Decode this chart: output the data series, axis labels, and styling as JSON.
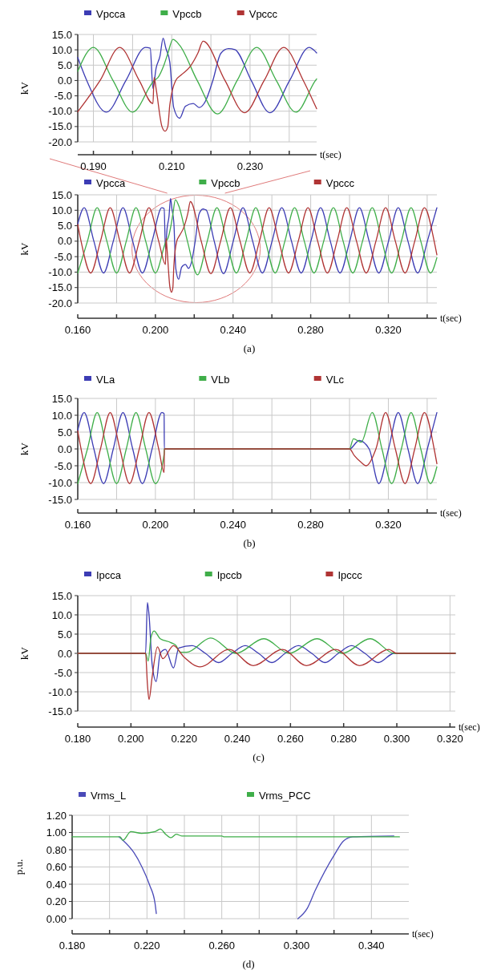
{
  "chart_data": [
    {
      "type": "line",
      "xlabel": "t(sec)",
      "ylabel": "kV",
      "legend": "top",
      "grid": true,
      "xlim": [
        0.186,
        0.247
      ],
      "xticks": [
        {
          "value": 0.19,
          "label": "0.190"
        },
        {
          "value": 0.2,
          "label": null
        },
        {
          "value": 0.21,
          "label": "0.210"
        },
        {
          "value": 0.22,
          "label": null
        },
        {
          "value": 0.23,
          "label": "0.230"
        },
        {
          "value": 0.24,
          "label": null
        }
      ],
      "ylim": [
        -20,
        15
      ],
      "yticks": [
        {
          "value": -20,
          "label": "-20.0"
        },
        {
          "value": -15,
          "label": "-15.0"
        },
        {
          "value": -10,
          "label": "-10.0"
        },
        {
          "value": -5,
          "label": "-5.0"
        },
        {
          "value": 0,
          "label": "0.0"
        },
        {
          "value": 5,
          "label": "5.0"
        },
        {
          "value": 10,
          "label": "10.0"
        },
        {
          "value": 15,
          "label": "15.0"
        }
      ],
      "series": [
        {
          "name": "Vpcca",
          "color": "#3c3cb4",
          "x": [
            0.186,
            0.1883,
            0.1933,
            0.1983,
            0.2033,
            0.2045,
            0.2052,
            0.206,
            0.207,
            0.2078,
            0.2085,
            0.2095,
            0.2105,
            0.212,
            0.2135,
            0.2155,
            0.217,
            0.2185,
            0.2205,
            0.2225,
            0.2245,
            0.2261,
            0.2303,
            0.2351,
            0.2401,
            0.2451,
            0.247
          ],
          "values": [
            7.5,
            0,
            -10.3,
            0,
            10.8,
            10.5,
            -2.6,
            4,
            8,
            13.8,
            10.5,
            6,
            -8.8,
            -12.3,
            -8.4,
            -7.5,
            -8.8,
            -7,
            0,
            8.8,
            10.4,
            10.1,
            0,
            -10.5,
            0,
            10.8,
            9.0
          ]
        },
        {
          "name": "Vpccb",
          "color": "#3fae49",
          "x": [
            0.186,
            0.19,
            0.195,
            0.2,
            0.2055,
            0.2065,
            0.208,
            0.209,
            0.2103,
            0.212,
            0.2165,
            0.2217,
            0.2267,
            0.2317,
            0.2367,
            0.2417,
            0.2467,
            0.247
          ],
          "values": [
            3.0,
            10.8,
            0,
            -10.3,
            0,
            1,
            5,
            8.8,
            13.4,
            11.5,
            0,
            -10.9,
            0,
            10.8,
            0,
            -10.3,
            0,
            0.5
          ]
        },
        {
          "name": "Vpccc",
          "color": "#b03434",
          "x": [
            0.186,
            0.1917,
            0.1967,
            0.2017,
            0.2052,
            0.2055,
            0.206,
            0.2075,
            0.2083,
            0.209,
            0.2095,
            0.211,
            0.2124,
            0.2146,
            0.2167,
            0.218,
            0.2236,
            0.2286,
            0.2336,
            0.2386,
            0.2436,
            0.247
          ],
          "values": [
            -10.2,
            0,
            10.8,
            0,
            -7.5,
            1,
            -2.6,
            -15,
            -16.5,
            -15,
            -8,
            0,
            1.8,
            4.4,
            9,
            12.8,
            0,
            -10.5,
            0,
            10.8,
            0,
            -9.2
          ]
        }
      ]
    },
    {
      "type": "line",
      "xlabel": "t(sec)",
      "ylabel": "kV",
      "legend": "top",
      "grid": true,
      "annotations": [
        "(a)"
      ],
      "xlim": [
        0.16,
        0.345
      ],
      "xticks": [
        {
          "value": 0.16,
          "label": "0.160"
        },
        {
          "value": 0.18,
          "label": null
        },
        {
          "value": 0.2,
          "label": "0.200"
        },
        {
          "value": 0.22,
          "label": null
        },
        {
          "value": 0.24,
          "label": "0.240"
        },
        {
          "value": 0.26,
          "label": null
        },
        {
          "value": 0.28,
          "label": "0.280"
        },
        {
          "value": 0.3,
          "label": null
        },
        {
          "value": 0.32,
          "label": "0.320"
        },
        {
          "value": 0.34,
          "label": null
        }
      ],
      "ylim": [
        -20,
        15
      ],
      "yticks": [
        {
          "value": -20,
          "label": "-20.0"
        },
        {
          "value": -15,
          "label": "-15.0"
        },
        {
          "value": -10,
          "label": "-10.0"
        },
        {
          "value": -5,
          "label": "-5.0"
        },
        {
          "value": 0,
          "label": "0.0"
        },
        {
          "value": 5,
          "label": "5.0"
        },
        {
          "value": 10,
          "label": "10.0"
        },
        {
          "value": 15,
          "label": "15.0"
        }
      ],
      "series": [
        {
          "name": "Vpcca",
          "color": "#3c3cb4",
          "x": [
            0.16,
            0.1633,
            0.1683,
            0.1733,
            0.1783,
            0.1833,
            0.1883,
            0.1933,
            0.1983,
            0.2033,
            0.2045,
            0.2052,
            0.206,
            0.207,
            0.2078,
            0.2085,
            0.2095,
            0.2105,
            0.212,
            0.2135,
            0.2155,
            0.217,
            0.2185,
            0.2205,
            0.2225,
            0.2245,
            0.2261,
            0.2303,
            0.2351,
            0.2401,
            0.2451,
            0.2501,
            0.2551,
            0.2601,
            0.2651,
            0.2701,
            0.2751,
            0.2801,
            0.2851,
            0.2901,
            0.2951,
            0.3001,
            0.3051,
            0.3101,
            0.3151,
            0.3201,
            0.3251,
            0.3301,
            0.3351,
            0.3401,
            0.345
          ],
          "values": [
            5.5,
            10.8,
            0,
            -10.3,
            0,
            10.8,
            0,
            -10.3,
            0,
            10.8,
            10.5,
            -2.6,
            4,
            8,
            13.8,
            10.5,
            6,
            -8.8,
            -12.3,
            -8.4,
            -7.5,
            -8.8,
            -7,
            0,
            8.8,
            10.4,
            10.1,
            0,
            -10.5,
            0,
            10.8,
            0,
            -10.3,
            0,
            10.8,
            0,
            -10.3,
            0,
            10.8,
            0,
            -10.3,
            0,
            10.8,
            0,
            -10.3,
            0,
            10.8,
            0,
            -10.3,
            0,
            10.8
          ]
        },
        {
          "name": "Vpccb",
          "color": "#3fae49",
          "x": [
            0.16,
            0.165,
            0.17,
            0.175,
            0.18,
            0.185,
            0.19,
            0.195,
            0.2,
            0.2055,
            0.2065,
            0.208,
            0.209,
            0.2103,
            0.212,
            0.2165,
            0.2217,
            0.2267,
            0.2317,
            0.2367,
            0.2417,
            0.2467,
            0.2517,
            0.2567,
            0.2617,
            0.2667,
            0.2717,
            0.2767,
            0.2817,
            0.2867,
            0.2917,
            0.2967,
            0.3017,
            0.3067,
            0.3117,
            0.3167,
            0.3217,
            0.3267,
            0.3317,
            0.3367,
            0.3417,
            0.345
          ],
          "values": [
            -10.3,
            0,
            10.8,
            0,
            -10.3,
            0,
            10.8,
            0,
            -10.3,
            0,
            1,
            5,
            8.8,
            13.4,
            11.5,
            0,
            -10.9,
            0,
            10.8,
            0,
            -10.3,
            0,
            10.8,
            0,
            -10.3,
            0,
            10.8,
            0,
            -10.3,
            0,
            10.8,
            0,
            -10.3,
            0,
            10.8,
            0,
            -10.3,
            0,
            10.8,
            0,
            -10.3,
            -5.3
          ]
        },
        {
          "name": "Vpccc",
          "color": "#b03434",
          "x": [
            0.16,
            0.1617,
            0.1667,
            0.1717,
            0.1767,
            0.1817,
            0.1867,
            0.1917,
            0.1967,
            0.2017,
            0.2052,
            0.2055,
            0.206,
            0.2075,
            0.2083,
            0.209,
            0.2095,
            0.211,
            0.2124,
            0.2146,
            0.2167,
            0.218,
            0.2236,
            0.2286,
            0.2336,
            0.2386,
            0.2436,
            0.2486,
            0.2536,
            0.2586,
            0.2636,
            0.2686,
            0.2736,
            0.2786,
            0.2836,
            0.2886,
            0.2936,
            0.2986,
            0.3036,
            0.3086,
            0.3136,
            0.3186,
            0.3236,
            0.3286,
            0.3336,
            0.3386,
            0.3436,
            0.345
          ],
          "values": [
            5.4,
            0,
            -10.3,
            0,
            10.8,
            0,
            -10.3,
            0,
            10.8,
            0,
            -7.5,
            1,
            -2.6,
            -15,
            -16.5,
            -15,
            -8,
            0,
            1.8,
            4.4,
            9,
            12.8,
            0,
            -10.5,
            0,
            10.8,
            0,
            -10.3,
            0,
            10.8,
            0,
            -10.3,
            0,
            10.8,
            0,
            -10.3,
            0,
            10.8,
            0,
            -10.3,
            0,
            10.8,
            0,
            -10.3,
            0,
            10.8,
            0,
            -4.4
          ]
        }
      ]
    },
    {
      "type": "line",
      "xlabel": "t(sec)",
      "ylabel": "kV",
      "legend": "top",
      "grid": true,
      "annotations": [
        "(b)"
      ],
      "xlim": [
        0.16,
        0.345
      ],
      "xticks": [
        {
          "value": 0.16,
          "label": "0.160"
        },
        {
          "value": 0.18,
          "label": null
        },
        {
          "value": 0.2,
          "label": "0.200"
        },
        {
          "value": 0.22,
          "label": null
        },
        {
          "value": 0.24,
          "label": "0.240"
        },
        {
          "value": 0.26,
          "label": null
        },
        {
          "value": 0.28,
          "label": "0.280"
        },
        {
          "value": 0.3,
          "label": null
        },
        {
          "value": 0.32,
          "label": "0.320"
        },
        {
          "value": 0.34,
          "label": null
        }
      ],
      "ylim": [
        -15,
        15
      ],
      "yticks": [
        {
          "value": -15,
          "label": "-15.0"
        },
        {
          "value": -10,
          "label": "-10.0"
        },
        {
          "value": -5,
          "label": "-5.0"
        },
        {
          "value": 0,
          "label": "0.0"
        },
        {
          "value": 5,
          "label": "5.0"
        },
        {
          "value": 10,
          "label": "10.0"
        },
        {
          "value": 15,
          "label": "15.0"
        }
      ],
      "series": [
        {
          "name": "VLa",
          "color": "#3c3cb4",
          "x": [
            0.16,
            0.1633,
            0.1683,
            0.1733,
            0.1783,
            0.1833,
            0.1883,
            0.1933,
            0.1983,
            0.2033,
            0.2045,
            0.2046,
            0.3,
            0.305,
            0.3101,
            0.3151,
            0.3201,
            0.3251,
            0.3301,
            0.3351,
            0.3401,
            0.345
          ],
          "values": [
            5.5,
            10.8,
            0,
            -10.3,
            0,
            10.8,
            0,
            -10.3,
            0,
            10.8,
            10.5,
            0,
            0,
            2.5,
            0,
            -10.3,
            0,
            10.8,
            0,
            -10.3,
            0,
            10.8
          ]
        },
        {
          "name": "VLb",
          "color": "#3fae49",
          "x": [
            0.16,
            0.165,
            0.17,
            0.175,
            0.18,
            0.185,
            0.19,
            0.195,
            0.2,
            0.2045,
            0.2046,
            0.3,
            0.302,
            0.306,
            0.3117,
            0.3167,
            0.3217,
            0.3267,
            0.3317,
            0.3367,
            0.3417,
            0.345
          ],
          "values": [
            -10.3,
            0,
            10.8,
            0,
            -10.3,
            0,
            10.8,
            0,
            -10.3,
            -1.5,
            0,
            0,
            3,
            2,
            10.8,
            0,
            -10.3,
            0,
            10.8,
            0,
            -10.3,
            -5.3
          ]
        },
        {
          "name": "VLc",
          "color": "#b03434",
          "x": [
            0.16,
            0.1617,
            0.1667,
            0.1717,
            0.1767,
            0.1817,
            0.1867,
            0.1917,
            0.1967,
            0.2017,
            0.2045,
            0.2046,
            0.3,
            0.3025,
            0.306,
            0.3086,
            0.3136,
            0.3186,
            0.3236,
            0.3286,
            0.3336,
            0.3386,
            0.3436,
            0.345
          ],
          "values": [
            5.4,
            0,
            -10.3,
            0,
            10.8,
            0,
            -10.3,
            0,
            10.8,
            0,
            -7,
            0,
            0,
            -2,
            -4,
            -5,
            0,
            10.8,
            0,
            -10.3,
            0,
            10.8,
            0,
            -4.4
          ]
        }
      ]
    },
    {
      "type": "line",
      "xlabel": "t(sec)",
      "ylabel": "kV",
      "legend": "top",
      "grid": true,
      "annotations": [
        "(c)"
      ],
      "xlim": [
        0.18,
        0.322
      ],
      "xticks": [
        {
          "value": 0.18,
          "label": "0.180"
        },
        {
          "value": 0.2,
          "label": "0.200"
        },
        {
          "value": 0.22,
          "label": "0.220"
        },
        {
          "value": 0.24,
          "label": "0.240"
        },
        {
          "value": 0.26,
          "label": "0.260"
        },
        {
          "value": 0.28,
          "label": "0.280"
        },
        {
          "value": 0.3,
          "label": "0.300"
        },
        {
          "value": 0.32,
          "label": "0.320"
        }
      ],
      "ylim": [
        -15,
        15
      ],
      "yticks": [
        {
          "value": -15,
          "label": "-15.0"
        },
        {
          "value": -10,
          "label": "-10.0"
        },
        {
          "value": -5,
          "label": "-5.0"
        },
        {
          "value": 0,
          "label": "0.0"
        },
        {
          "value": 5,
          "label": "5.0"
        },
        {
          "value": 10,
          "label": "10.0"
        },
        {
          "value": 15,
          "label": "15.0"
        }
      ],
      "series": [
        {
          "name": "Ipcca",
          "color": "#3c3cb4",
          "x": [
            0.18,
            0.2055,
            0.2062,
            0.2068,
            0.208,
            0.2095,
            0.211,
            0.213,
            0.216,
            0.218,
            0.223,
            0.228,
            0.233,
            0.238,
            0.243,
            0.248,
            0.253,
            0.258,
            0.263,
            0.268,
            0.273,
            0.278,
            0.283,
            0.288,
            0.293,
            0.299,
            0.322
          ],
          "values": [
            0,
            0,
            13.2,
            10,
            -3,
            -7.3,
            0,
            1,
            -3.8,
            1.4,
            2,
            0,
            -2.4,
            0,
            2,
            0,
            -2.4,
            0,
            2,
            0,
            -2.4,
            0,
            2,
            0,
            -2.4,
            0,
            0
          ]
        },
        {
          "name": "Ipccb",
          "color": "#3fae49",
          "x": [
            0.18,
            0.2055,
            0.2065,
            0.2075,
            0.2087,
            0.211,
            0.215,
            0.217,
            0.2185,
            0.221,
            0.23,
            0.2395,
            0.25,
            0.2595,
            0.27,
            0.2795,
            0.29,
            0.299,
            0.322
          ],
          "values": [
            0,
            0,
            -2,
            4,
            5.8,
            3.8,
            2.8,
            2,
            0.3,
            0.3,
            4,
            0,
            3.8,
            0,
            3.8,
            0,
            3.8,
            0,
            0
          ]
        },
        {
          "name": "Ipccc",
          "color": "#b03434",
          "x": [
            0.18,
            0.2055,
            0.2062,
            0.2068,
            0.208,
            0.21,
            0.212,
            0.216,
            0.22,
            0.226,
            0.237,
            0.246,
            0.257,
            0.266,
            0.277,
            0.286,
            0.297,
            0.3,
            0.322
          ],
          "values": [
            0,
            0,
            -8,
            -12,
            -6,
            1.7,
            -1.4,
            2,
            -1,
            -3.5,
            1,
            -3.2,
            1,
            -3.2,
            1,
            -3.2,
            1,
            0,
            0
          ]
        }
      ]
    },
    {
      "type": "line",
      "xlabel": "t(sec)",
      "ylabel": "p.u.",
      "legend": "top",
      "grid": true,
      "annotations": [
        "(d)"
      ],
      "xlim": [
        0.18,
        0.36
      ],
      "xticks": [
        {
          "value": 0.18,
          "label": "0.180"
        },
        {
          "value": 0.2,
          "label": null
        },
        {
          "value": 0.22,
          "label": "0.220"
        },
        {
          "value": 0.24,
          "label": null
        },
        {
          "value": 0.26,
          "label": "0.260"
        },
        {
          "value": 0.28,
          "label": null
        },
        {
          "value": 0.3,
          "label": "0.300"
        },
        {
          "value": 0.32,
          "label": null
        },
        {
          "value": 0.34,
          "label": "0.340"
        }
      ],
      "ylim": [
        0,
        1.2
      ],
      "yticks": [
        {
          "value": 0,
          "label": "0.00"
        },
        {
          "value": 0.2,
          "label": "0.20"
        },
        {
          "value": 0.4,
          "label": "0.40"
        },
        {
          "value": 0.6,
          "label": "0.60"
        },
        {
          "value": 0.8,
          "label": "0.80"
        },
        {
          "value": 1.0,
          "label": "1.00"
        },
        {
          "value": 1.2,
          "label": "1.20"
        }
      ],
      "series": [
        {
          "name": "Vrms_L",
          "color": "#4a4ab8",
          "x": [
            0.205,
            0.2071,
            0.2129,
            0.2171,
            0.2214,
            0.2243,
            0.225,
            0.26,
            0.3007,
            0.3057,
            0.31,
            0.3207,
            0.325,
            0.33,
            0.352
          ],
          "values": [
            0.95,
            0.91,
            0.77,
            0.61,
            0.39,
            0.18,
            0.06,
            null,
            0.0,
            0.12,
            0.33,
            0.76,
            0.9,
            0.95,
            0.96
          ]
        },
        {
          "name": "Vrms_PCC",
          "color": "#3fae49",
          "x": [
            0.18,
            0.2057,
            0.2071,
            0.2114,
            0.2171,
            0.2243,
            0.2271,
            0.23,
            0.2329,
            0.2357,
            0.2386,
            0.26,
            0.261,
            0.355
          ],
          "values": [
            0.95,
            0.95,
            0.91,
            1.01,
            0.99,
            1.01,
            1.04,
            0.98,
            0.94,
            0.98,
            0.96,
            0.96,
            0.95,
            0.95
          ]
        }
      ]
    }
  ]
}
